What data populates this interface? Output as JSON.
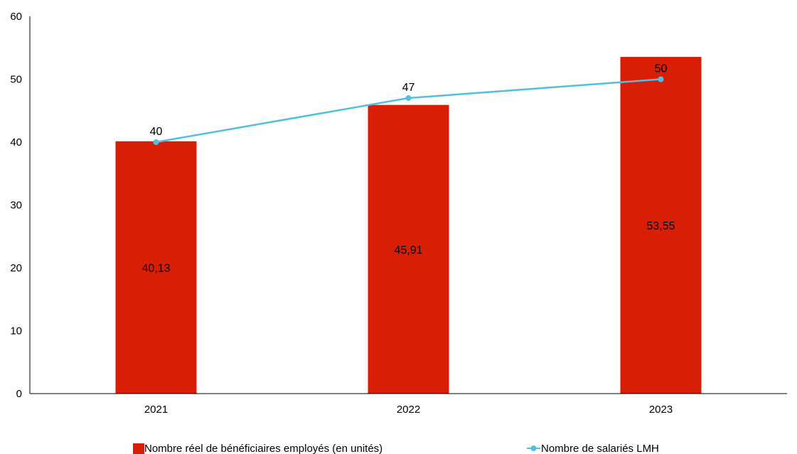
{
  "chart_data": {
    "type": "bar",
    "categories": [
      "2021",
      "2022",
      "2023"
    ],
    "series": [
      {
        "name": "Nombre réel de bénéficiaires employés (en unités)",
        "type": "bar",
        "values": [
          40.13,
          45.91,
          53.55
        ],
        "labels": [
          "40,13",
          "45,91",
          "53,55"
        ],
        "color": "#d81e05"
      },
      {
        "name": "Nombre de salariés LMH",
        "type": "line",
        "values": [
          40,
          47,
          50
        ],
        "labels": [
          "40",
          "47",
          "50"
        ],
        "color": "#4fc0e0"
      }
    ],
    "yticks": [
      "0",
      "10",
      "20",
      "30",
      "40",
      "50",
      "60"
    ],
    "ylim": [
      0,
      60
    ],
    "grid": false,
    "legend_position": "bottom"
  }
}
